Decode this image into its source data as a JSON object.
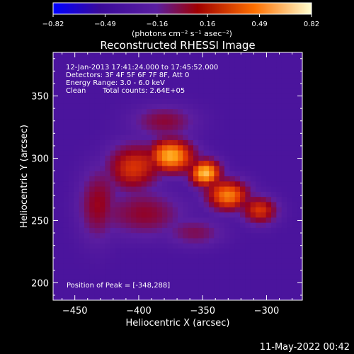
{
  "chart_data": {
    "type": "heatmap",
    "title": "Reconstructed RHESSI Image",
    "xlabel": "Heliocentric X (arcsec)",
    "ylabel": "Heliocentric Y (arcsec)",
    "xlim": [
      -467,
      -272
    ],
    "ylim": [
      186,
      385
    ],
    "x_ticks": [
      -450,
      -400,
      -350,
      -300
    ],
    "y_ticks": [
      200,
      250,
      300,
      350
    ],
    "x_tick_labels": [
      "−450",
      "−400",
      "−350",
      "−300"
    ],
    "y_tick_labels": [
      "200",
      "250",
      "300",
      "350"
    ],
    "colorbar": {
      "range": [
        -0.82,
        0.82
      ],
      "ticks": [
        -0.82,
        -0.49,
        -0.16,
        0.16,
        0.49,
        0.82
      ],
      "tick_labels": [
        "−0.82",
        "−0.49",
        "−0.16",
        "0.16",
        "0.49",
        "0.82"
      ],
      "units_label": "(photons cm⁻² s⁻¹ asec⁻²)",
      "colors": [
        "#0000ff",
        "#3a0a9a",
        "#5a1ea0",
        "#b00000",
        "#ff7000",
        "#ffffd0"
      ]
    },
    "annotations": {
      "time_range": "12-Jan-2013 17:41:24.000 to 17:45:52.000",
      "detectors": "Detectors: 3F 4F 5F 6F 7F 8F, Att 0",
      "energy": "Energy Range: 3.0 - 6.0 keV",
      "clean": "Clean",
      "total_counts": "Total counts: 2.64E+05",
      "peak": "Position of Peak = [-348,288]"
    },
    "peak_position": [
      -348,
      288
    ],
    "sources": [
      {
        "x": -348,
        "y": 288,
        "peak": 0.82,
        "sx": 9,
        "sy": 8
      },
      {
        "x": -375,
        "y": 302,
        "peak": 0.78,
        "sx": 13,
        "sy": 10
      },
      {
        "x": -330,
        "y": 270,
        "peak": 0.68,
        "sx": 12,
        "sy": 9
      },
      {
        "x": -305,
        "y": 258,
        "peak": 0.5,
        "sx": 10,
        "sy": 8
      },
      {
        "x": -405,
        "y": 292,
        "peak": 0.5,
        "sx": 15,
        "sy": 14
      },
      {
        "x": -432,
        "y": 262,
        "peak": 0.35,
        "sx": 11,
        "sy": 20
      },
      {
        "x": -395,
        "y": 255,
        "peak": 0.32,
        "sx": 22,
        "sy": 13
      },
      {
        "x": -380,
        "y": 330,
        "peak": 0.3,
        "sx": 18,
        "sy": 9
      },
      {
        "x": -355,
        "y": 240,
        "peak": 0.25,
        "sx": 16,
        "sy": 8
      }
    ],
    "background_level": -0.38
  },
  "footer": {
    "date": "11-May-2022 00:42"
  }
}
